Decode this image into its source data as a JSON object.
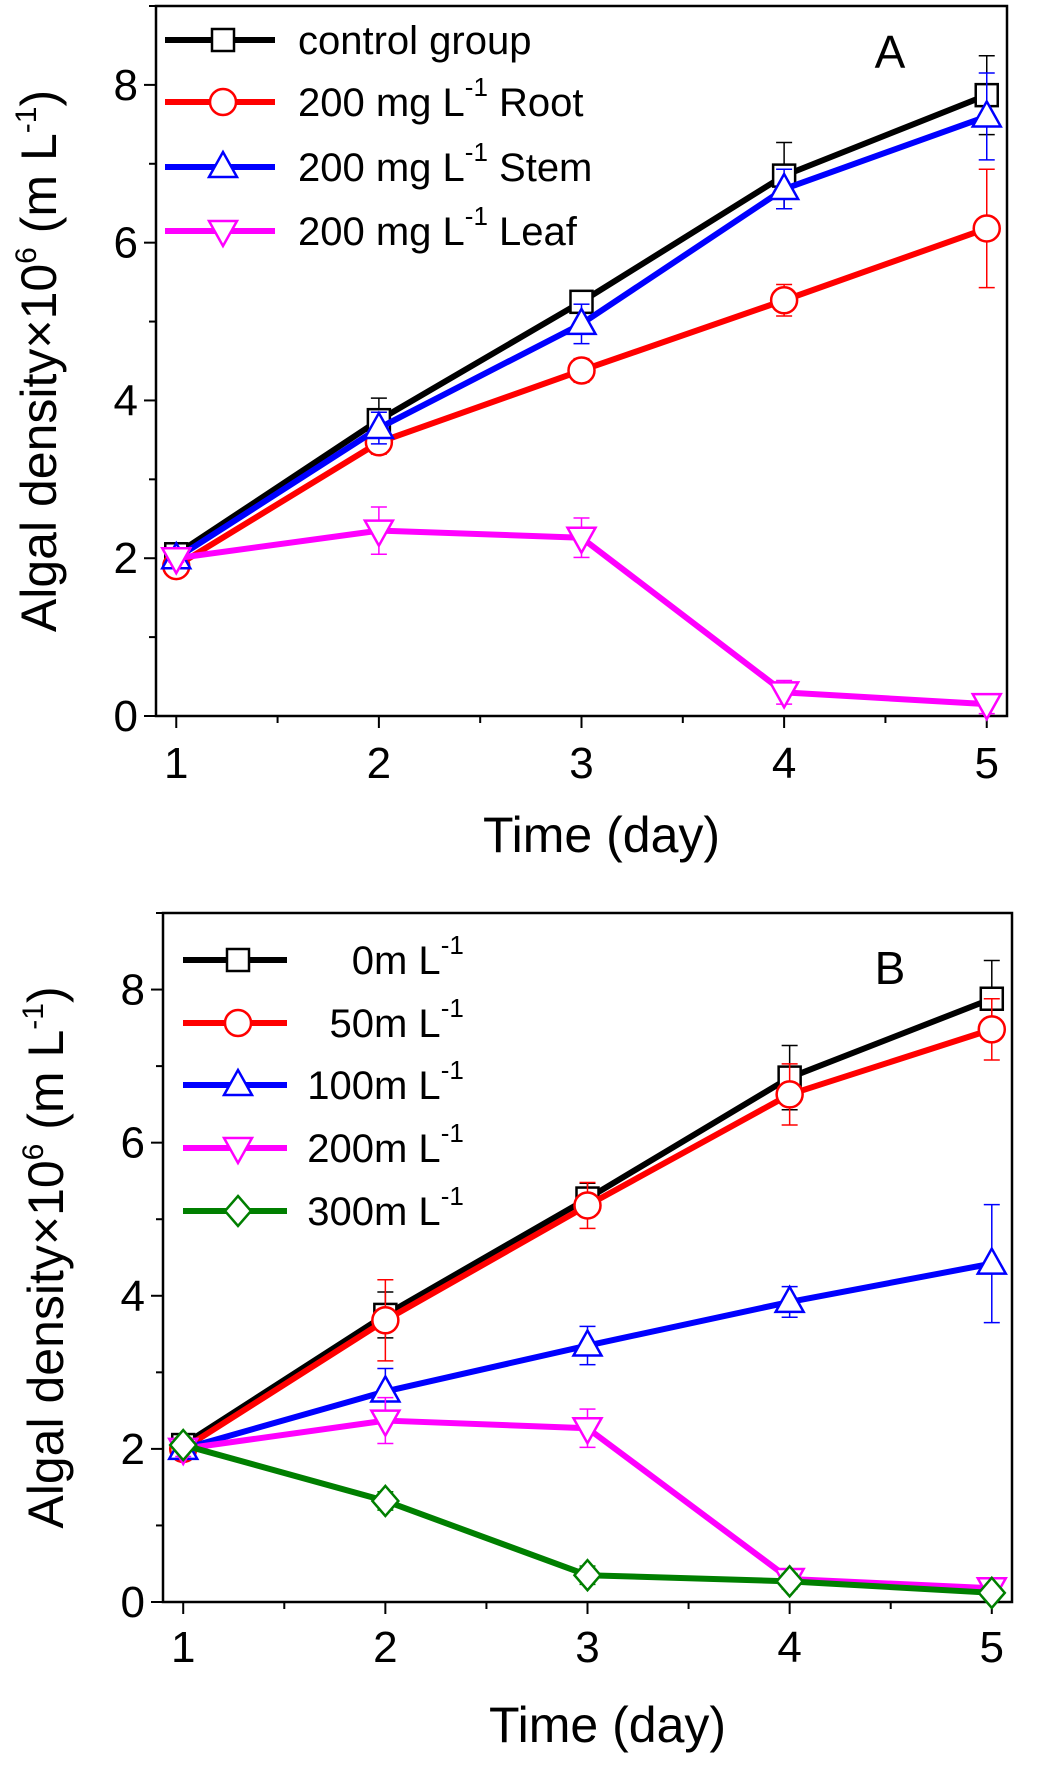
{
  "chart_data": [
    {
      "type": "line",
      "panel_label": "A",
      "xlabel": "Time (day)",
      "ylabel": {
        "main": "Algal density×10",
        "exp": "6",
        "unit_open": " (m L",
        "unit_exp": "-1",
        "unit_close": ")"
      },
      "xlim": [
        0.9,
        5.1
      ],
      "ylim": [
        0,
        9
      ],
      "xticks": [
        1,
        2,
        3,
        4,
        5
      ],
      "yticks": [
        0,
        2,
        4,
        6,
        8
      ],
      "grid": false,
      "legend_position": "top-left",
      "x": [
        1,
        2,
        3,
        4,
        5
      ],
      "series": [
        {
          "name": "control group",
          "name_parts": [
            "control group",
            "",
            ""
          ],
          "color": "#000000",
          "marker": "square",
          "values": [
            2.05,
            3.75,
            5.25,
            6.85,
            7.87
          ],
          "errors": [
            0.08,
            0.28,
            0.1,
            0.42,
            0.5
          ]
        },
        {
          "name": "200 mg L-1 Root",
          "name_parts": [
            "200 mg L",
            "-1",
            " Root"
          ],
          "color": "#ff0000",
          "marker": "circle",
          "values": [
            1.9,
            3.47,
            4.38,
            5.27,
            6.18
          ],
          "errors": [
            0.08,
            0.15,
            0.15,
            0.2,
            0.75
          ]
        },
        {
          "name": "200 mg L-1 Stem",
          "name_parts": [
            "200 mg L",
            "-1",
            " Stem"
          ],
          "color": "#0000ff",
          "marker": "triangle-up",
          "values": [
            2.0,
            3.65,
            4.97,
            6.68,
            7.6
          ],
          "errors": [
            0.1,
            0.2,
            0.25,
            0.25,
            0.55
          ]
        },
        {
          "name": "200 mg L-1 Leaf",
          "name_parts": [
            "200 mg L",
            "-1",
            " Leaf"
          ],
          "color": "#ff00ff",
          "marker": "triangle-down",
          "values": [
            2.0,
            2.35,
            2.26,
            0.3,
            0.15
          ],
          "errors": [
            0.05,
            0.3,
            0.25,
            0.15,
            0.12
          ]
        }
      ]
    },
    {
      "type": "line",
      "panel_label": "B",
      "xlabel": "Time (day)",
      "ylabel": {
        "main": "Algal density×10",
        "exp": "6",
        "unit_open": " (m L",
        "unit_exp": "-1",
        "unit_close": ")"
      },
      "xlim": [
        0.9,
        5.1
      ],
      "ylim": [
        0,
        9
      ],
      "xticks": [
        1,
        2,
        3,
        4,
        5
      ],
      "yticks": [
        0,
        2,
        4,
        6,
        8
      ],
      "grid": false,
      "legend_position": "top-left",
      "x": [
        1,
        2,
        3,
        4,
        5
      ],
      "series": [
        {
          "name": "0 m L-1",
          "name_parts": [
            "0",
            " m L",
            "-1"
          ],
          "color": "#000000",
          "marker": "square",
          "values": [
            2.05,
            3.75,
            5.27,
            6.85,
            7.88
          ],
          "errors": [
            0.08,
            0.3,
            0.2,
            0.42,
            0.5
          ]
        },
        {
          "name": "50 m L-1",
          "name_parts": [
            "50",
            " m L",
            "-1"
          ],
          "color": "#ff0000",
          "marker": "circle",
          "values": [
            2.0,
            3.68,
            5.18,
            6.63,
            7.48
          ],
          "errors": [
            0.1,
            0.53,
            0.3,
            0.4,
            0.4
          ]
        },
        {
          "name": "100 m L-1",
          "name_parts": [
            "100",
            " m L",
            "-1"
          ],
          "color": "#0000ff",
          "marker": "triangle-up",
          "values": [
            2.0,
            2.75,
            3.35,
            3.92,
            4.42
          ],
          "errors": [
            0.08,
            0.3,
            0.25,
            0.2,
            0.77
          ]
        },
        {
          "name": "200 m L-1",
          "name_parts": [
            "200",
            " m L",
            "-1"
          ],
          "color": "#ff00ff",
          "marker": "triangle-down",
          "values": [
            2.0,
            2.37,
            2.27,
            0.3,
            0.18
          ],
          "errors": [
            0.1,
            0.3,
            0.25,
            0.1,
            0.1
          ]
        },
        {
          "name": "300 m L-1",
          "name_parts": [
            "300",
            " m L",
            "-1"
          ],
          "color": "#007f00",
          "marker": "diamond",
          "values": [
            2.05,
            1.32,
            0.35,
            0.27,
            0.12
          ],
          "errors": [
            0.08,
            0.12,
            0.12,
            0.1,
            0.08
          ]
        }
      ]
    }
  ]
}
